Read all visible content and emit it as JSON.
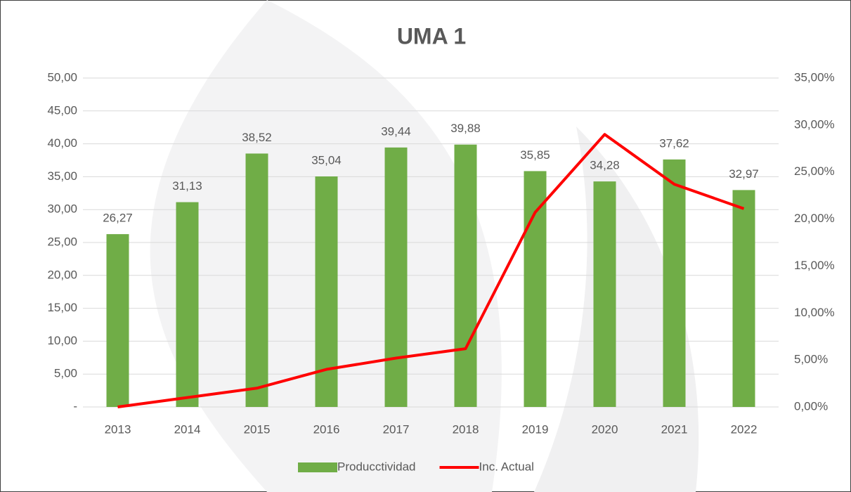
{
  "chart_data": {
    "type": "bar-line",
    "title": "UMA 1",
    "categories": [
      "2013",
      "2014",
      "2015",
      "2016",
      "2017",
      "2018",
      "2019",
      "2020",
      "2021",
      "2022"
    ],
    "series": [
      {
        "name": "Producctividad",
        "type": "bar",
        "color": "#70ad47",
        "values": [
          26.27,
          31.13,
          38.52,
          35.04,
          39.44,
          39.88,
          35.85,
          34.28,
          37.62,
          32.97
        ],
        "value_labels": [
          "26,27",
          "31,13",
          "38,52",
          "35,04",
          "39,44",
          "39,88",
          "35,85",
          "34,28",
          "37,62",
          "32,97"
        ]
      },
      {
        "name": "Inc. Actual",
        "type": "line",
        "axis": "y2",
        "color": "#ff0000",
        "values": [
          0.0,
          1.0,
          2.0,
          4.0,
          5.2,
          6.2,
          20.7,
          29.0,
          23.7,
          21.1
        ]
      }
    ],
    "ylim": [
      0,
      50
    ],
    "yticks": [
      {
        "value": 0,
        "label": "-"
      },
      {
        "value": 5,
        "label": "5,00"
      },
      {
        "value": 10,
        "label": "10,00"
      },
      {
        "value": 15,
        "label": "15,00"
      },
      {
        "value": 20,
        "label": "20,00"
      },
      {
        "value": 25,
        "label": "25,00"
      },
      {
        "value": 30,
        "label": "30,00"
      },
      {
        "value": 35,
        "label": "35,00"
      },
      {
        "value": 40,
        "label": "40,00"
      },
      {
        "value": 45,
        "label": "45,00"
      },
      {
        "value": 50,
        "label": "50,00"
      }
    ],
    "y2lim": [
      0,
      35
    ],
    "y2ticks": [
      {
        "value": 0,
        "label": "0,00%"
      },
      {
        "value": 5,
        "label": "5,00%"
      },
      {
        "value": 10,
        "label": "10,00%"
      },
      {
        "value": 15,
        "label": "15,00%"
      },
      {
        "value": 20,
        "label": "20,00%"
      },
      {
        "value": 25,
        "label": "25,00%"
      },
      {
        "value": 30,
        "label": "30,00%"
      },
      {
        "value": 35,
        "label": "35,00%"
      }
    ],
    "grid": true,
    "legend": "bottom"
  }
}
